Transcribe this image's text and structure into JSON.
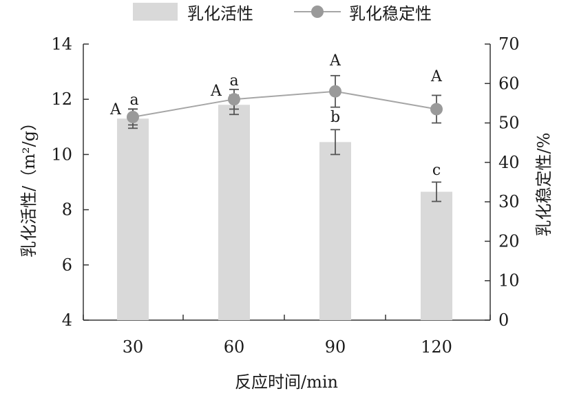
{
  "chart_data": {
    "type": "bar+line",
    "categories": [
      "30",
      "60",
      "90",
      "120"
    ],
    "xlabel": "反应时间/min",
    "ylabel_left": "乳化活性/（m²/g）",
    "ylabel_right": "乳化稳定性/%",
    "ylim_left": [
      4,
      14
    ],
    "yticks_left": [
      "4",
      "6",
      "8",
      "10",
      "12",
      "14"
    ],
    "ylim_right": [
      0,
      70
    ],
    "yticks_right": [
      "0",
      "10",
      "20",
      "30",
      "40",
      "50",
      "60",
      "70"
    ],
    "legend_position": "top",
    "series": [
      {
        "name": "乳化活性",
        "type": "bar",
        "axis": "left",
        "values": [
          11.3,
          11.8,
          10.45,
          8.65
        ],
        "errors": [
          0.35,
          0.35,
          0.45,
          0.35
        ],
        "labels": [
          "a",
          "a",
          "b",
          "c"
        ],
        "color": "#d9d9d9"
      },
      {
        "name": "乳化稳定性",
        "type": "line",
        "axis": "right",
        "values": [
          51.5,
          56.0,
          58.0,
          53.5
        ],
        "errors": [
          2.0,
          2.5,
          4.0,
          3.5
        ],
        "labels": [
          "A",
          "A",
          "A",
          "A"
        ],
        "color": "#a6a6a6",
        "marker_color": "#9a9a9a"
      }
    ],
    "grid": false
  }
}
